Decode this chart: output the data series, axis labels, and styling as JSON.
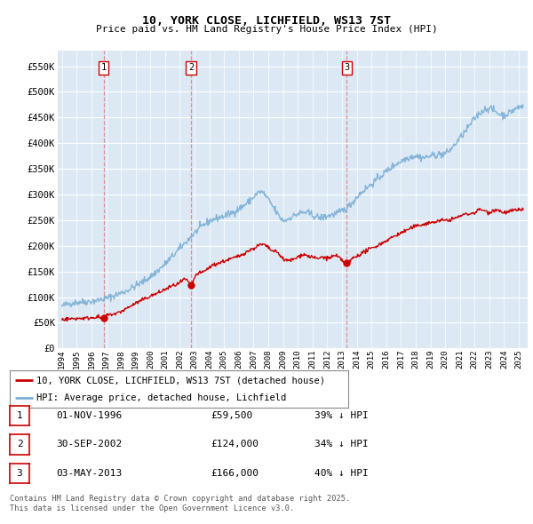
{
  "title_line1": "10, YORK CLOSE, LICHFIELD, WS13 7ST",
  "title_line2": "Price paid vs. HM Land Registry's House Price Index (HPI)",
  "ylim": [
    0,
    580000
  ],
  "yticks": [
    0,
    50000,
    100000,
    150000,
    200000,
    250000,
    300000,
    350000,
    400000,
    450000,
    500000,
    550000
  ],
  "ytick_labels": [
    "£0",
    "£50K",
    "£100K",
    "£150K",
    "£200K",
    "£250K",
    "£300K",
    "£350K",
    "£400K",
    "£450K",
    "£500K",
    "£550K"
  ],
  "legend_entries": [
    "10, YORK CLOSE, LICHFIELD, WS13 7ST (detached house)",
    "HPI: Average price, detached house, Lichfield"
  ],
  "legend_colors": [
    "#cc0000",
    "#7bafd4"
  ],
  "transactions": [
    {
      "num": 1,
      "date": "01-NOV-1996",
      "price": 59500,
      "pct": "39%",
      "year_x": 1996.83
    },
    {
      "num": 2,
      "date": "30-SEP-2002",
      "price": 124000,
      "pct": "34%",
      "year_x": 2002.75
    },
    {
      "num": 3,
      "date": "03-MAY-2013",
      "price": 166000,
      "pct": "40%",
      "year_x": 2013.33
    }
  ],
  "footer_line1": "Contains HM Land Registry data © Crown copyright and database right 2025.",
  "footer_line2": "This data is licensed under the Open Government Licence v3.0.",
  "background_color": "#ffffff",
  "plot_bg_color": "#dce9f5",
  "grid_color": "#ffffff",
  "red_line_color": "#cc0000",
  "blue_line_color": "#7bafd4",
  "vline_color": "#e08080",
  "hpi_keypoints": [
    [
      1994.0,
      82000
    ],
    [
      1995.0,
      90000
    ],
    [
      1996.0,
      92000
    ],
    [
      1997.0,
      98000
    ],
    [
      1998.0,
      108000
    ],
    [
      1999.0,
      122000
    ],
    [
      2000.0,
      140000
    ],
    [
      2001.0,
      165000
    ],
    [
      2002.0,
      195000
    ],
    [
      2003.0,
      225000
    ],
    [
      2004.0,
      248000
    ],
    [
      2005.0,
      258000
    ],
    [
      2006.0,
      272000
    ],
    [
      2007.0,
      295000
    ],
    [
      2007.5,
      305000
    ],
    [
      2008.0,
      290000
    ],
    [
      2008.5,
      268000
    ],
    [
      2009.0,
      250000
    ],
    [
      2009.5,
      255000
    ],
    [
      2010.0,
      262000
    ],
    [
      2010.5,
      265000
    ],
    [
      2011.0,
      260000
    ],
    [
      2011.5,
      255000
    ],
    [
      2012.0,
      258000
    ],
    [
      2012.5,
      262000
    ],
    [
      2013.0,
      268000
    ],
    [
      2013.5,
      278000
    ],
    [
      2014.0,
      295000
    ],
    [
      2015.0,
      320000
    ],
    [
      2016.0,
      345000
    ],
    [
      2017.0,
      365000
    ],
    [
      2017.5,
      372000
    ],
    [
      2018.0,
      375000
    ],
    [
      2018.5,
      372000
    ],
    [
      2019.0,
      375000
    ],
    [
      2019.5,
      378000
    ],
    [
      2020.0,
      380000
    ],
    [
      2020.5,
      392000
    ],
    [
      2021.0,
      410000
    ],
    [
      2021.5,
      428000
    ],
    [
      2022.0,
      448000
    ],
    [
      2022.5,
      462000
    ],
    [
      2023.0,
      468000
    ],
    [
      2023.5,
      460000
    ],
    [
      2024.0,
      455000
    ],
    [
      2024.5,
      462000
    ],
    [
      2025.0,
      470000
    ],
    [
      2025.3,
      472000
    ]
  ],
  "price_keypoints": [
    [
      1994.0,
      57000
    ],
    [
      1994.5,
      57500
    ],
    [
      1995.0,
      58500
    ],
    [
      1995.5,
      59000
    ],
    [
      1996.0,
      60000
    ],
    [
      1996.5,
      61000
    ],
    [
      1996.83,
      59500
    ],
    [
      1997.0,
      63000
    ],
    [
      1997.5,
      67000
    ],
    [
      1998.0,
      72000
    ],
    [
      1998.5,
      80000
    ],
    [
      1999.0,
      88000
    ],
    [
      1999.5,
      95000
    ],
    [
      2000.0,
      102000
    ],
    [
      2000.5,
      108000
    ],
    [
      2001.0,
      115000
    ],
    [
      2001.5,
      122000
    ],
    [
      2002.0,
      128000
    ],
    [
      2002.5,
      132000
    ],
    [
      2002.75,
      124000
    ],
    [
      2003.0,
      138000
    ],
    [
      2003.5,
      148000
    ],
    [
      2004.0,
      158000
    ],
    [
      2004.5,
      165000
    ],
    [
      2005.0,
      170000
    ],
    [
      2005.5,
      175000
    ],
    [
      2006.0,
      180000
    ],
    [
      2006.5,
      188000
    ],
    [
      2007.0,
      195000
    ],
    [
      2007.3,
      200000
    ],
    [
      2007.7,
      202000
    ],
    [
      2008.0,
      196000
    ],
    [
      2008.3,
      190000
    ],
    [
      2008.7,
      185000
    ],
    [
      2009.0,
      175000
    ],
    [
      2009.5,
      172000
    ],
    [
      2010.0,
      178000
    ],
    [
      2010.3,
      183000
    ],
    [
      2010.7,
      180000
    ],
    [
      2011.0,
      178000
    ],
    [
      2011.3,
      175000
    ],
    [
      2011.7,
      178000
    ],
    [
      2012.0,
      176000
    ],
    [
      2012.5,
      180000
    ],
    [
      2013.0,
      172000
    ],
    [
      2013.33,
      166000
    ],
    [
      2013.7,
      175000
    ],
    [
      2014.0,
      180000
    ],
    [
      2014.5,
      188000
    ],
    [
      2015.0,
      195000
    ],
    [
      2015.5,
      202000
    ],
    [
      2016.0,
      210000
    ],
    [
      2016.5,
      218000
    ],
    [
      2017.0,
      225000
    ],
    [
      2017.5,
      232000
    ],
    [
      2018.0,
      238000
    ],
    [
      2018.5,
      242000
    ],
    [
      2019.0,
      245000
    ],
    [
      2019.5,
      248000
    ],
    [
      2020.0,
      250000
    ],
    [
      2020.5,
      252000
    ],
    [
      2021.0,
      258000
    ],
    [
      2021.5,
      262000
    ],
    [
      2022.0,
      265000
    ],
    [
      2022.3,
      270000
    ],
    [
      2022.7,
      268000
    ],
    [
      2023.0,
      265000
    ],
    [
      2023.3,
      270000
    ],
    [
      2023.7,
      268000
    ],
    [
      2024.0,
      265000
    ],
    [
      2024.5,
      268000
    ],
    [
      2025.0,
      270000
    ],
    [
      2025.3,
      272000
    ]
  ],
  "xlim_left": 1993.7,
  "xlim_right": 2025.6
}
